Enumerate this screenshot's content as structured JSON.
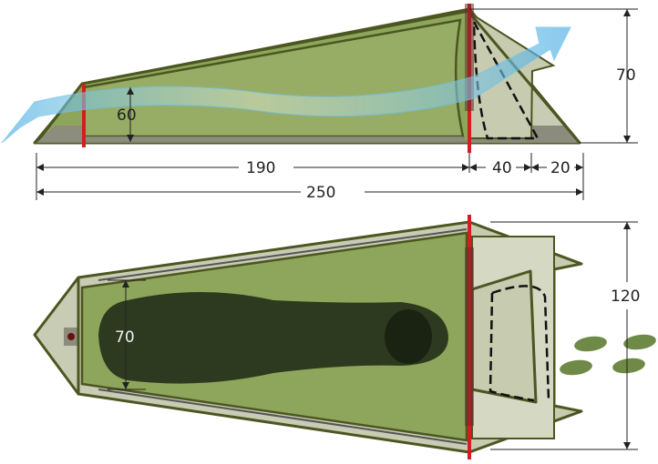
{
  "side_view": {
    "dimensions": {
      "inner_height": "60",
      "total_height": "70",
      "inner_length": "190",
      "vestibule_length": "40",
      "vestibule_tip_length": "20",
      "total_length": "250"
    }
  },
  "top_view": {
    "dimensions": {
      "inner_width": "70",
      "total_width": "120"
    }
  },
  "colors": {
    "tent_fabric": "#8ea65b",
    "tent_outline": "#4b5620",
    "floor_gray": "#8c8c7e",
    "pole_red": "#d11f1f",
    "sleeping_bag": "#2d3a1f",
    "airflow_blue": "#6fc2ec",
    "footprints": "#6e8a46"
  }
}
